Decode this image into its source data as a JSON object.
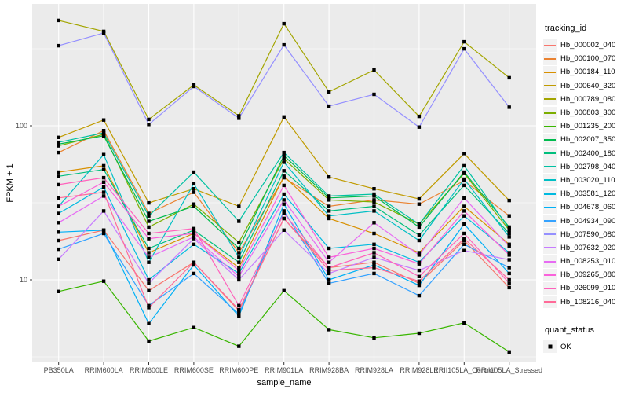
{
  "chart_data": {
    "type": "line",
    "xlabel": "sample_name",
    "ylabel": "FPKM + 1",
    "yscale": "log10",
    "yticks": [
      10,
      100
    ],
    "ylim": [
      2.9,
      617
    ],
    "grid": "major-and-minor-white-on-grey",
    "legend_position": "right",
    "marker": {
      "shape": "square",
      "color": "#000000",
      "meaning": "quant_status OK"
    },
    "categories": [
      "PB350LA",
      "RRIM600LA",
      "RRIM600LE",
      "RRIM600SE",
      "RRIM600PE",
      "RRIM901LA",
      "RRIM928BA",
      "RRIM928LA",
      "RRIM928LE",
      "RRII105LA_Control",
      "RRII105LA_Stressed"
    ],
    "series": [
      {
        "name": "Hb_000002_040",
        "color": "#F8766D",
        "values": [
          18,
          21,
          8.5,
          13,
          6.3,
          25,
          12,
          13,
          9.5,
          18,
          8.9
        ]
      },
      {
        "name": "Hb_000100_070",
        "color": "#EA8331",
        "values": [
          67,
          93,
          27,
          37,
          15,
          46,
          30,
          33,
          31,
          44,
          26
        ]
      },
      {
        "name": "Hb_000184_110",
        "color": "#D89000",
        "values": [
          50,
          55,
          15,
          20,
          12,
          47,
          25,
          20,
          15,
          30,
          17
        ]
      },
      {
        "name": "Hb_000640_320",
        "color": "#C09B00",
        "values": [
          84,
          109,
          31.6,
          39,
          30,
          114,
          46.5,
          39,
          33.5,
          66,
          32.7
        ]
      },
      {
        "name": "Hb_000789_080",
        "color": "#A3A500",
        "values": [
          483,
          410,
          110,
          184,
          116,
          460,
          166,
          230,
          115,
          351,
          205
        ]
      },
      {
        "name": "Hb_000803_300",
        "color": "#7CAE00",
        "values": [
          74,
          88,
          22,
          31,
          17.5,
          61,
          33,
          32,
          23,
          49,
          21
        ]
      },
      {
        "name": "Hb_001235_200",
        "color": "#39B600",
        "values": [
          8.4,
          9.8,
          4.0,
          4.9,
          3.7,
          8.5,
          4.75,
          4.2,
          4.5,
          5.25,
          3.4
        ]
      },
      {
        "name": "Hb_002007_350",
        "color": "#00BB4E",
        "values": [
          76,
          86,
          24,
          30,
          16,
          64,
          34,
          35,
          22,
          50,
          22
        ]
      },
      {
        "name": "Hb_002400_180",
        "color": "#00BF7D",
        "values": [
          47,
          52,
          16,
          21,
          13,
          51,
          28,
          30,
          19.5,
          41,
          20
        ]
      },
      {
        "name": "Hb_002798_040",
        "color": "#00C1A3",
        "values": [
          78,
          90,
          26,
          50,
          24,
          67,
          35,
          36,
          23,
          55,
          21.5
        ]
      },
      {
        "name": "Hb_003020_110",
        "color": "#00BFC4",
        "values": [
          30,
          65,
          13,
          42,
          14,
          58,
          26,
          28,
          18,
          45,
          19
        ]
      },
      {
        "name": "Hb_003581_120",
        "color": "#00BAE0",
        "values": [
          27,
          40,
          10,
          17,
          11,
          36,
          16,
          17,
          13,
          26,
          15
        ]
      },
      {
        "name": "Hb_004678_060",
        "color": "#00B0F6",
        "values": [
          20.4,
          21,
          5.2,
          12.5,
          5.8,
          31,
          10,
          12.5,
          9.2,
          23,
          11
        ]
      },
      {
        "name": "Hb_004934_090",
        "color": "#35A2FF",
        "values": [
          15.8,
          20,
          6.8,
          11,
          6.0,
          28,
          9.5,
          11,
          7.9,
          17,
          12
        ]
      },
      {
        "name": "Hb_007590_080",
        "color": "#9590FF",
        "values": [
          331,
          400,
          102,
          180,
          112,
          335,
          134,
          160,
          98,
          316,
          132
        ]
      },
      {
        "name": "Hb_007632_020",
        "color": "#C77CFF",
        "values": [
          13.6,
          28,
          9.5,
          18.5,
          10,
          21,
          11,
          14,
          11.5,
          15.5,
          13.5
        ]
      },
      {
        "name": "Hb_008253_010",
        "color": "#E76BF3",
        "values": [
          23.5,
          35,
          14,
          19,
          10.5,
          33,
          13,
          23.5,
          14.5,
          34,
          16.5
        ]
      },
      {
        "name": "Hb_009265_080",
        "color": "#FA62DB",
        "values": [
          30,
          43,
          18.5,
          20,
          11.5,
          41,
          14,
          16,
          12.7,
          28,
          14.5
        ]
      },
      {
        "name": "Hb_026099_010",
        "color": "#FF62BC",
        "values": [
          41.5,
          46,
          20,
          21.5,
          6.8,
          27,
          12,
          15,
          10.5,
          20,
          9.5
        ]
      },
      {
        "name": "Hb_108216_040",
        "color": "#FF6A98",
        "values": [
          34,
          37,
          6.6,
          13,
          6.4,
          25,
          11.5,
          12,
          9.8,
          18.5,
          10
        ]
      }
    ]
  },
  "legend": {
    "tracking_title": "tracking_id",
    "quant_title": "quant_status",
    "quant_items": [
      {
        "label": "OK"
      }
    ]
  },
  "colors": {
    "panel_bg": "#EBEBEB",
    "grid": "#FFFFFF",
    "legend_key_bg": "#F2F2F2",
    "tick_text": "#4D4D4D",
    "point": "#000000"
  }
}
